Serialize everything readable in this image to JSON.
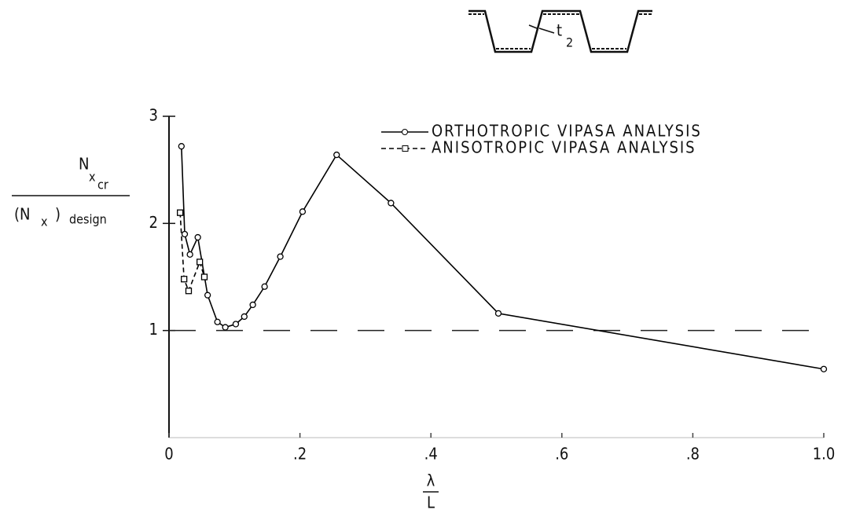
{
  "chart_data": {
    "type": "line",
    "ylabel": {
      "numerator": "N",
      "numerator_sub": "x",
      "numerator_subsub": "cr",
      "denominator_open": "(N",
      "denominator_sub": "x",
      "denominator_close": ")",
      "denominator_tail": "design"
    },
    "xlabel": {
      "numerator": "λ",
      "denominator": "L"
    },
    "inset_label": {
      "text": "t",
      "sub": "2"
    },
    "reference_line": 1,
    "xlim": [
      0,
      1
    ],
    "ylim": [
      0,
      3
    ],
    "xticks": [
      0,
      {
        "value": 0.2,
        "label": ".2"
      },
      {
        "value": 0.4,
        "label": ".4"
      },
      {
        "value": 0.6,
        "label": ".6"
      },
      {
        "value": 0.8,
        "label": ".8"
      },
      {
        "value": 1.0,
        "label": "1.0"
      }
    ],
    "yticks": [
      1,
      2,
      3
    ],
    "legend": "top-right",
    "series": [
      {
        "name": "ORTHOTROPIC VIPASA ANALYSIS",
        "color": "#000000",
        "marker": "circle",
        "dash": "solid",
        "x": [
          0.019,
          0.024,
          0.032,
          0.044,
          0.059,
          0.074,
          0.086,
          0.102,
          0.115,
          0.128,
          0.146,
          0.17,
          0.204,
          0.256,
          0.339,
          0.503,
          1.0
        ],
        "values": [
          2.72,
          1.9,
          1.71,
          1.87,
          1.33,
          1.08,
          1.03,
          1.06,
          1.13,
          1.24,
          1.41,
          1.69,
          2.11,
          2.64,
          2.19,
          1.16,
          0.64
        ]
      },
      {
        "name": "ANISOTROPIC VIPASA ANALYSIS",
        "color": "#000000",
        "marker": "square",
        "dash": "dashed",
        "x": [
          0.017,
          0.023,
          0.03,
          0.047,
          0.054
        ],
        "values": [
          2.1,
          1.48,
          1.37,
          1.64,
          1.5
        ]
      }
    ]
  }
}
